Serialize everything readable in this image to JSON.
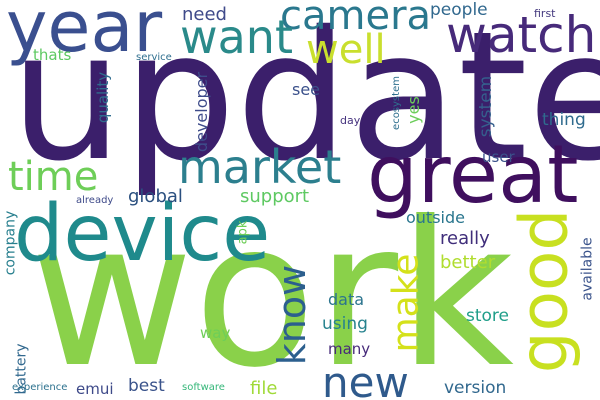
{
  "words": [
    {
      "text": "update",
      "color": "#3b1f6b"
    },
    {
      "text": "work",
      "color": "#8ad14a"
    },
    {
      "text": "device",
      "color": "#1f8a8c"
    },
    {
      "text": "great",
      "color": "#3f0f5e"
    },
    {
      "text": "year",
      "color": "#3a4f8f"
    },
    {
      "text": "good",
      "color": "#c8e020"
    },
    {
      "text": "watch",
      "color": "#472a7a"
    },
    {
      "text": "new",
      "color": "#2f5a8c"
    },
    {
      "text": "market",
      "color": "#2c7f8e"
    },
    {
      "text": "time",
      "color": "#6ece58"
    },
    {
      "text": "camera",
      "color": "#2a788e"
    },
    {
      "text": "want",
      "color": "#2a8a8a"
    },
    {
      "text": "well",
      "color": "#c9df2e"
    },
    {
      "text": "know",
      "color": "#2c5f8e"
    },
    {
      "text": "make",
      "color": "#d4e11a"
    },
    {
      "text": "need",
      "color": "#3f4a8a"
    },
    {
      "text": "people",
      "color": "#31688e"
    },
    {
      "text": "first",
      "color": "#44397e"
    },
    {
      "text": "thats",
      "color": "#5ec962"
    },
    {
      "text": "service",
      "color": "#2e6e8e"
    },
    {
      "text": "quality",
      "color": "#2f6c8e"
    },
    {
      "text": "developer",
      "color": "#3e4c8a"
    },
    {
      "text": "ecosystem",
      "color": "#2e6f8e"
    },
    {
      "text": "see",
      "color": "#3b518b"
    },
    {
      "text": "day",
      "color": "#46337f"
    },
    {
      "text": "yes",
      "color": "#6ccd5a"
    },
    {
      "text": "system",
      "color": "#355f8d"
    },
    {
      "text": "thing",
      "color": "#2f6b8e"
    },
    {
      "text": "user",
      "color": "#3b528b"
    },
    {
      "text": "global",
      "color": "#2a4f7f"
    },
    {
      "text": "support",
      "color": "#5ec962"
    },
    {
      "text": "already",
      "color": "#3e4a89"
    },
    {
      "text": "company",
      "color": "#277f8e"
    },
    {
      "text": "apk",
      "color": "#6ece58"
    },
    {
      "text": "outside",
      "color": "#2a768e"
    },
    {
      "text": "really",
      "color": "#3f2d7a"
    },
    {
      "text": "better",
      "color": "#b0dd2f"
    },
    {
      "text": "available",
      "color": "#3a538b"
    },
    {
      "text": "battery",
      "color": "#31688e"
    },
    {
      "text": "data",
      "color": "#2b748e"
    },
    {
      "text": "using",
      "color": "#26828e"
    },
    {
      "text": "many",
      "color": "#472a7a"
    },
    {
      "text": "store",
      "color": "#1f9e89"
    },
    {
      "text": "way",
      "color": "#6ece58"
    },
    {
      "text": "best",
      "color": "#3a538b"
    },
    {
      "text": "version",
      "color": "#31688e"
    },
    {
      "text": "file",
      "color": "#a0da39"
    },
    {
      "text": "emui",
      "color": "#3e4a89"
    },
    {
      "text": "experience",
      "color": "#2c718e"
    },
    {
      "text": "software",
      "color": "#35b779"
    }
  ]
}
